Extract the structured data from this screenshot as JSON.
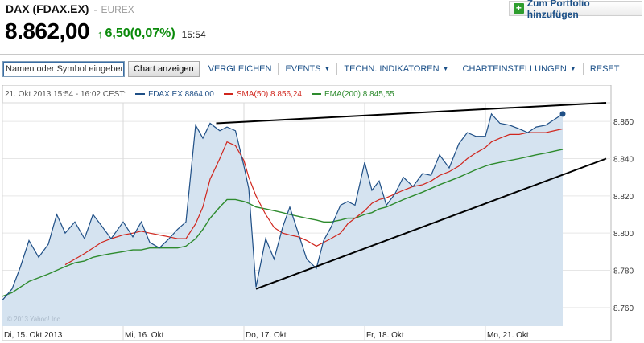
{
  "header": {
    "title": "DAX (FDAX.EX)",
    "separator": "-",
    "exchange": "EUREX",
    "price": "8.862,00",
    "change_icon": "arrow-up-icon",
    "change": "6,50(0,07%)",
    "time": "15:54",
    "portfolio_label": "Zum Portfolio hinzufügen"
  },
  "toolbar": {
    "search_placeholder": "Namen oder Symbol eingeben",
    "chart_button": "Chart anzeigen",
    "menu": [
      {
        "label": "VERGLEICHEN",
        "dropdown": false
      },
      {
        "label": "EVENTS",
        "dropdown": true
      },
      {
        "label": "TECHN. INDIKATOREN",
        "dropdown": true
      },
      {
        "label": "CHARTEINSTELLUNGEN",
        "dropdown": true
      },
      {
        "label": "RESET",
        "dropdown": false
      }
    ]
  },
  "chart": {
    "range_label": "21. Okt 2013 15:54 - 16:02 CEST:",
    "legend": [
      {
        "label": "FDAX.EX 8864,00",
        "color": "#1f4f86"
      },
      {
        "label": "SMA(50) 8.856,24",
        "color": "#d0261d"
      },
      {
        "label": "EMA(200) 8.845,55",
        "color": "#2e8b2e"
      }
    ],
    "watermark": "© 2013 Yahoo! Inc."
  },
  "chart_data": {
    "type": "area",
    "title": "",
    "xlabel": "",
    "ylabel": "",
    "x_ticks": [
      "Di, 15. Okt 2013",
      "Mi, 16. Okt",
      "Do, 17. Okt",
      "Fr, 18. Okt",
      "Mo, 21. Okt"
    ],
    "y_ticks": [
      "8.760",
      "8.780",
      "8.800",
      "8.820",
      "8.840",
      "8.860"
    ],
    "ylim": [
      8750,
      8870
    ],
    "grid": true,
    "legend_position": "top-left",
    "session_starts": [
      0,
      1,
      2,
      3,
      4
    ],
    "x": [
      0.0,
      0.08,
      0.15,
      0.22,
      0.3,
      0.38,
      0.45,
      0.52,
      0.6,
      0.68,
      0.75,
      0.82,
      0.9,
      1.0,
      1.08,
      1.15,
      1.22,
      1.3,
      1.38,
      1.45,
      1.52,
      1.6,
      1.66,
      1.72,
      1.8,
      1.86,
      1.93,
      2.0,
      2.04,
      2.1,
      2.18,
      2.25,
      2.32,
      2.38,
      2.45,
      2.52,
      2.6,
      2.66,
      2.72,
      2.8,
      2.86,
      2.92,
      3.0,
      3.06,
      3.12,
      3.18,
      3.25,
      3.32,
      3.4,
      3.48,
      3.55,
      3.62,
      3.7,
      3.78,
      3.85,
      3.92,
      4.0,
      4.05,
      4.12,
      4.2,
      4.28,
      4.35,
      4.42,
      4.5,
      4.57,
      4.64
    ],
    "series": [
      {
        "name": "FDAX.EX 8864,00",
        "values": [
          8764,
          8770,
          8782,
          8796,
          8787,
          8794,
          8810,
          8800,
          8806,
          8797,
          8810,
          8804,
          8797,
          8806,
          8798,
          8806,
          8795,
          8792,
          8797,
          8802,
          8806,
          8858,
          8851,
          8859,
          8855,
          8857,
          8855,
          8836,
          8824,
          8771,
          8797,
          8786,
          8803,
          8814,
          8800,
          8786,
          8781,
          8796,
          8803,
          8815,
          8817,
          8815,
          8838,
          8823,
          8828,
          8815,
          8821,
          8830,
          8825,
          8832,
          8831,
          8842,
          8835,
          8848,
          8854,
          8852,
          8852,
          8864,
          8859,
          8858,
          8856,
          8854,
          8857,
          8858,
          8861,
          8864
        ]
      },
      {
        "name": "SMA(50) 8.856,24",
        "values": [
          null,
          null,
          null,
          null,
          null,
          null,
          null,
          8783,
          8786,
          8789,
          8792,
          8795,
          8797,
          8799,
          8800,
          8801,
          8800,
          8799,
          8798,
          8797,
          8797,
          8805,
          8814,
          8829,
          8840,
          8849,
          8847,
          8839,
          8830,
          8820,
          8810,
          8803,
          8800,
          8799,
          8798,
          8796,
          8793,
          8795,
          8797,
          8800,
          8805,
          8808,
          8812,
          8816,
          8818,
          8819,
          8821,
          8823,
          8825,
          8826,
          8828,
          8831,
          8833,
          8836,
          8840,
          8843,
          8846,
          8849,
          8851,
          8853,
          8853,
          8854,
          8854,
          8854,
          8855,
          8856
        ]
      },
      {
        "name": "EMA(200) 8.845,55",
        "values": [
          8766,
          8768,
          8771,
          8774,
          8776,
          8778,
          8780,
          8782,
          8784,
          8785,
          8787,
          8788,
          8789,
          8790,
          8791,
          8791,
          8792,
          8792,
          8792,
          8792,
          8793,
          8797,
          8802,
          8808,
          8814,
          8818,
          8818,
          8817,
          8816,
          8814,
          8813,
          8812,
          8811,
          8810,
          8809,
          8808,
          8807,
          8806,
          8806,
          8807,
          8808,
          8808,
          8810,
          8811,
          8813,
          8814,
          8816,
          8818,
          8820,
          8822,
          8824,
          8826,
          8828,
          8830,
          8832,
          8834,
          8836,
          8837,
          8838,
          8839,
          8840,
          8841,
          8842,
          8843,
          8844,
          8845
        ]
      }
    ],
    "trendlines": [
      {
        "from": [
          1.77,
          8859
        ],
        "to": [
          5.0,
          8870
        ]
      },
      {
        "from": [
          2.1,
          8770
        ],
        "to": [
          5.0,
          8840
        ]
      }
    ]
  }
}
